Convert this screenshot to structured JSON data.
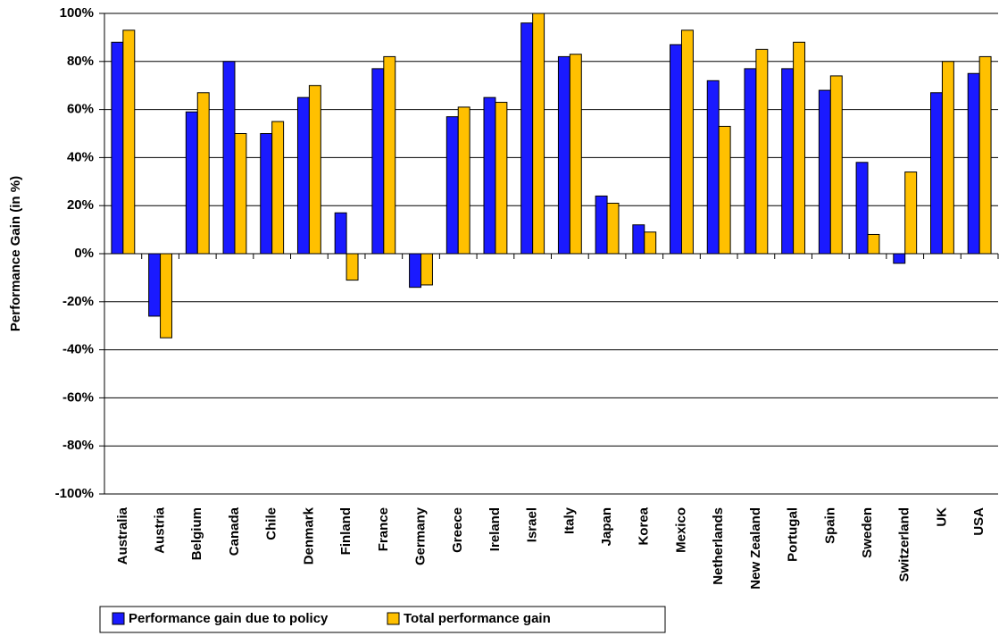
{
  "chart_data": {
    "type": "bar",
    "y_label": "Performance Gain (in %)",
    "categories": [
      "Australia",
      "Austria",
      "Belgium",
      "Canada",
      "Chile",
      "Denmark",
      "Finland",
      "France",
      "Germany",
      "Greece",
      "Ireland",
      "Israel",
      "Italy",
      "Japan",
      "Korea",
      "Mexico",
      "Netherlands",
      "New Zealand",
      "Portugal",
      "Spain",
      "Sweden",
      "Switzerland",
      "UK",
      "USA"
    ],
    "series": [
      {
        "name": "Performance gain due to policy",
        "color": "#1a1aff",
        "values": [
          88,
          -26,
          59,
          80,
          50,
          65,
          17,
          77,
          -14,
          57,
          65,
          96,
          82,
          24,
          12,
          87,
          72,
          77,
          77,
          68,
          38,
          -4,
          67,
          75
        ]
      },
      {
        "name": "Total performance gain",
        "color": "#ffc000",
        "values": [
          93,
          -35,
          67,
          50,
          55,
          70,
          -11,
          82,
          -13,
          61,
          63,
          100,
          83,
          21,
          9,
          93,
          53,
          85,
          88,
          74,
          8,
          34,
          80,
          82
        ]
      }
    ],
    "ylim": [
      -100,
      100
    ],
    "yticks": [
      {
        "value": -100,
        "label": "-100%"
      },
      {
        "value": -80,
        "label": "-80%"
      },
      {
        "value": -60,
        "label": "-60%"
      },
      {
        "value": -40,
        "label": "-40%"
      },
      {
        "value": -20,
        "label": "-20%"
      },
      {
        "value": 0,
        "label": "0%"
      },
      {
        "value": 20,
        "label": "20%"
      },
      {
        "value": 40,
        "label": "40%"
      },
      {
        "value": 60,
        "label": "60%"
      },
      {
        "value": 80,
        "label": "80%"
      },
      {
        "value": 100,
        "label": "100%"
      }
    ],
    "grid": true
  }
}
